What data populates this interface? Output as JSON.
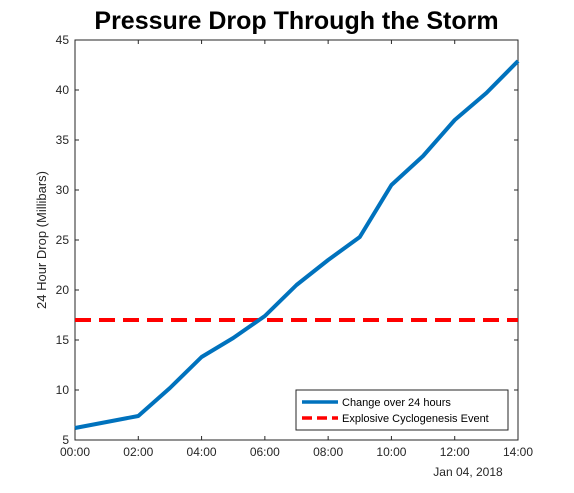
{
  "chart_data": {
    "type": "line",
    "title": "Pressure Drop Through the Storm",
    "xlabel": "",
    "ylabel": "24 Hour Drop (Millibars)",
    "x_ticks": [
      "00:00",
      "02:00",
      "04:00",
      "06:00",
      "08:00",
      "10:00",
      "12:00",
      "14:00"
    ],
    "x_secondary_label": "Jan 04, 2018",
    "xlim_hours": [
      0,
      14
    ],
    "ylim": [
      5,
      45
    ],
    "y_ticks": [
      5,
      10,
      15,
      20,
      25,
      30,
      35,
      40,
      45
    ],
    "grid": false,
    "legend_position": "bottom-right",
    "series": [
      {
        "name": "Change over 24 hours",
        "color": "#0072BD",
        "style": "solid",
        "x": [
          "00:00",
          "01:00",
          "02:00",
          "03:00",
          "04:00",
          "05:00",
          "06:00",
          "07:00",
          "08:00",
          "09:00",
          "10:00",
          "11:00",
          "12:00",
          "13:00",
          "14:00"
        ],
        "y": [
          6.2,
          6.8,
          7.4,
          10.2,
          13.3,
          15.2,
          17.4,
          20.5,
          23.0,
          25.3,
          30.5,
          33.4,
          37.0,
          39.7,
          42.9
        ]
      },
      {
        "name": "Explosive Cyclogenesis Event",
        "color": "#FF0000",
        "style": "dashed",
        "x": [
          "00:00",
          "14:00"
        ],
        "y": [
          17,
          17
        ]
      }
    ]
  }
}
